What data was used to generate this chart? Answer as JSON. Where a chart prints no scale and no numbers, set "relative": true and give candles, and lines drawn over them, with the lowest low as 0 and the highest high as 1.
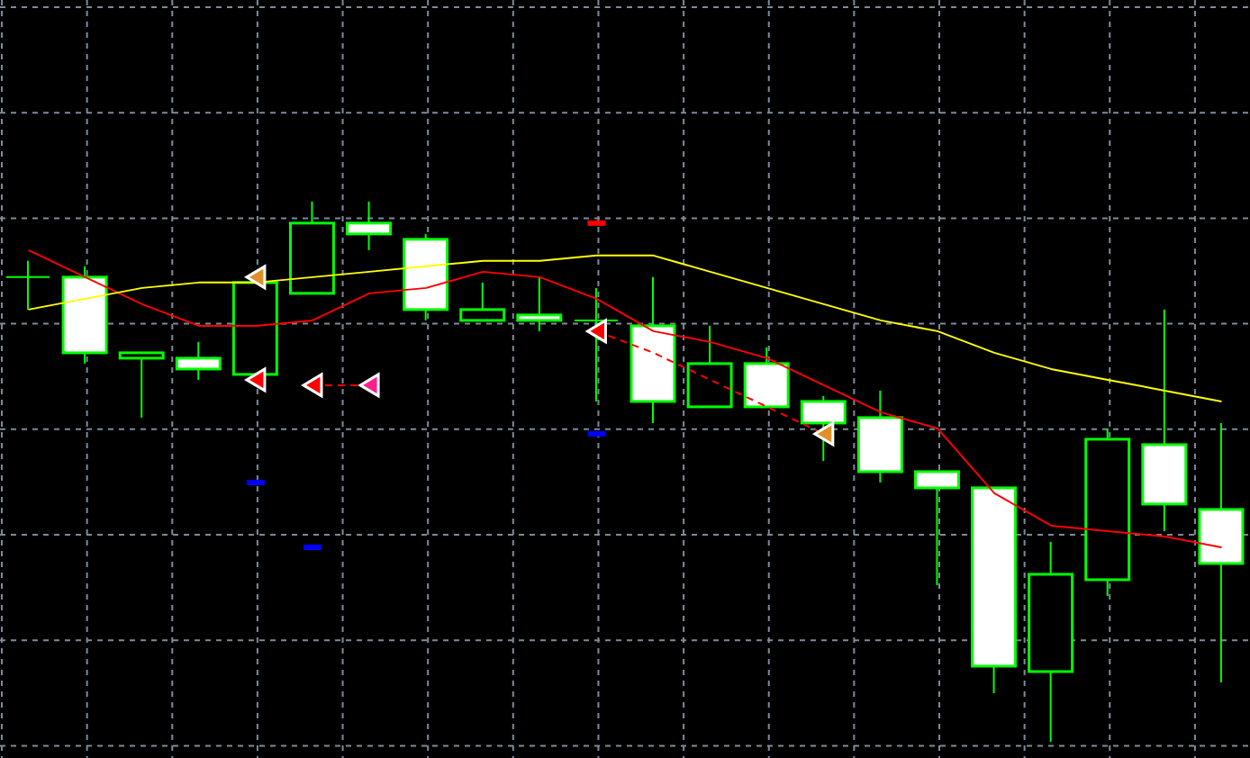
{
  "chart_data": {
    "type": "candlestick",
    "relative": true,
    "grid": true,
    "legend": false,
    "categories": [
      null,
      null,
      null,
      null,
      null,
      null,
      null,
      null,
      null,
      null,
      null,
      null,
      null,
      null,
      null,
      null,
      null,
      null,
      null,
      null,
      null,
      null
    ],
    "ohlc": [
      [
        0.86,
        0.89,
        0.8,
        0.86
      ],
      [
        0.86,
        0.88,
        0.7,
        0.72
      ],
      [
        0.71,
        0.72,
        0.6,
        0.72
      ],
      [
        0.71,
        0.74,
        0.67,
        0.69
      ],
      [
        0.68,
        0.85,
        0.68,
        0.85
      ],
      [
        0.83,
        1,
        0.83,
        0.96
      ],
      [
        0.96,
        1,
        0.91,
        0.94
      ],
      [
        0.93,
        0.94,
        0.78,
        0.8
      ],
      [
        0.78,
        0.85,
        0.78,
        0.8
      ],
      [
        0.79,
        0.86,
        0.76,
        0.78
      ],
      [
        0.78,
        0.84,
        0.63,
        0.78
      ],
      [
        0.77,
        0.86,
        0.59,
        0.63
      ],
      [
        0.62,
        0.77,
        0.62,
        0.7
      ],
      [
        0.7,
        0.73,
        0.62,
        0.62
      ],
      [
        0.63,
        0.64,
        0.52,
        0.59
      ],
      [
        0.6,
        0.65,
        0.48,
        0.5
      ],
      [
        0.5,
        0.5,
        0.29,
        0.47
      ],
      [
        0.47,
        0.47,
        0.09,
        0.14
      ],
      [
        0.13,
        0.37,
        0,
        0.31
      ],
      [
        0.3,
        0.58,
        0.27,
        0.56
      ],
      [
        0.55,
        0.8,
        0.39,
        0.44
      ],
      [
        0.43,
        0.59,
        0.11,
        0.33
      ]
    ],
    "color": "#00ff00",
    "colors": [
      "#00ff00",
      "#ffffff",
      "#000000",
      "#ffffff",
      "#000000",
      "#000000",
      "#ffffff",
      "#ffffff",
      "#000000",
      "#ffffff",
      "#00ff00",
      "#ffffff",
      "#000000",
      "#ffffff",
      "#ffffff",
      "#ffffff",
      "#ffffff",
      "#ffffff",
      "#000000",
      "#000000",
      "#ffffff",
      "#ffffff"
    ],
    "series": [
      {
        "type": "line",
        "color": "#ff0000",
        "marker": "none",
        "line_style": "solid",
        "values": [
          0.91,
          0.86,
          0.81,
          0.77,
          0.77,
          0.78,
          0.83,
          0.84,
          0.87,
          0.86,
          0.82,
          0.76,
          0.74,
          0.71,
          0.66,
          0.61,
          0.58,
          0.46,
          0.4,
          0.39,
          0.38,
          0.36
        ]
      },
      {
        "type": "line",
        "color": "#ffff00",
        "marker": "none",
        "line_style": "solid",
        "values": [
          0.8,
          0.82,
          0.84,
          0.85,
          0.85,
          0.86,
          0.87,
          0.88,
          0.89,
          0.89,
          0.9,
          0.9,
          0.87,
          0.84,
          0.81,
          0.78,
          0.76,
          0.72,
          0.69,
          0.67,
          0.65,
          0.63
        ]
      },
      {
        "type": "line",
        "color": "#ff0000",
        "marker": "none",
        "line_style": "dashed",
        "values": [
          null,
          null,
          null,
          null,
          null,
          0.66,
          0.66,
          null,
          null,
          null,
          0.76,
          0.72,
          0.67,
          0.62,
          0.57,
          null,
          null,
          null,
          null,
          null,
          null,
          null
        ]
      },
      {
        "type": "scatter",
        "color": "#ff0000",
        "marker": "triangle",
        "values": [
          null,
          null,
          null,
          null,
          0.67,
          0.66,
          null,
          null,
          null,
          null,
          0.76,
          null,
          null,
          null,
          null,
          null,
          null,
          null,
          null,
          null,
          null,
          null
        ]
      },
      {
        "type": "scatter",
        "color": "#e0902a",
        "marker": "triangle",
        "values": [
          null,
          null,
          null,
          null,
          0.86,
          null,
          null,
          null,
          null,
          null,
          null,
          null,
          null,
          null,
          0.57,
          null,
          null,
          null,
          null,
          null,
          null,
          null
        ]
      },
      {
        "type": "scatter",
        "color": "#ff1e8c",
        "marker": "triangle",
        "values": [
          null,
          null,
          null,
          null,
          null,
          null,
          0.66,
          null,
          null,
          null,
          null,
          null,
          null,
          null,
          null,
          null,
          null,
          null,
          null,
          null,
          null,
          null
        ]
      },
      {
        "type": "scatter",
        "color": "#0000ff",
        "values": [
          null,
          null,
          null,
          null,
          0.48,
          0.36,
          null,
          null,
          null,
          null,
          0.57,
          null,
          null,
          null,
          null,
          null,
          null,
          null,
          null,
          null,
          null,
          null
        ]
      },
      {
        "type": "scatter",
        "color": "#ff0000",
        "values": [
          null,
          null,
          null,
          null,
          null,
          null,
          null,
          null,
          null,
          null,
          0.96,
          null,
          null,
          null,
          null,
          null,
          null,
          null,
          null,
          null,
          null,
          null
        ]
      }
    ]
  }
}
